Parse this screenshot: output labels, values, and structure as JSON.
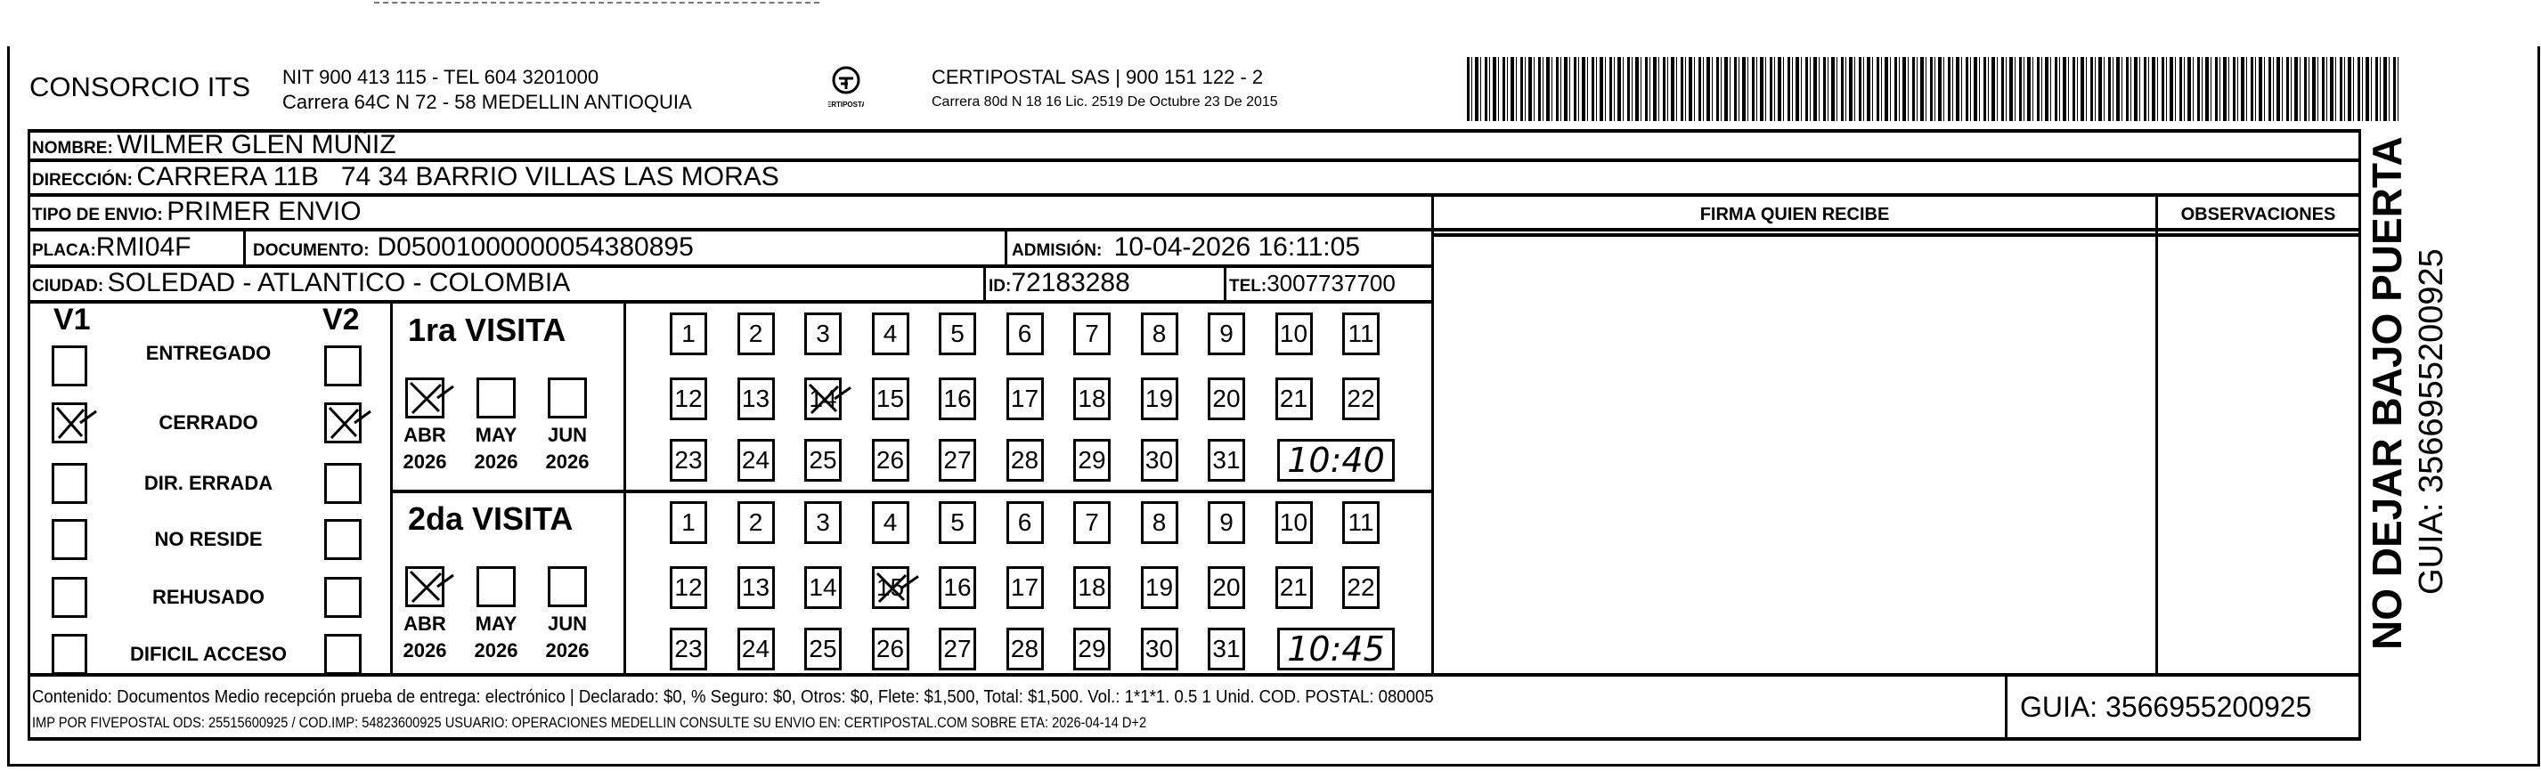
{
  "header": {
    "company": "CONSORCIO ITS",
    "company_line1": "NIT 900 413 115 - TEL 604 3201000",
    "company_line2": "Carrera 64C N 72 - 58 MEDELLIN ANTIOQUIA",
    "logo_text": "CERTIPOSTAL",
    "carrier_line1": "CERTIPOSTAL SAS | 900 151 122 - 2",
    "carrier_line2": "Carrera 80d N 18 16  Lic. 2519 De Octubre 23 De 2015"
  },
  "fields": {
    "nombre_label": "NOMBRE:",
    "nombre": "WILMER GLEN MUÑIZ",
    "direccion_label": "DIRECCIÓN:",
    "direccion": "CARRERA 11B   74 34 BARRIO VILLAS LAS MORAS",
    "tipo_label": "TIPO DE ENVIO:",
    "tipo": "PRIMER ENVIO",
    "placa_label": "PLACA:",
    "placa": "RMI04F",
    "documento_label": "DOCUMENTO:",
    "documento": "D05001000000054380895",
    "admision_label": "ADMISIÓN:",
    "admision": "10-04-2026 16:11:05",
    "ciudad_label": "CIUDAD:",
    "ciudad": "SOLEDAD - ATLANTICO - COLOMBIA",
    "id_label": "ID:",
    "id": "72183288",
    "tel_label": "TEL:",
    "tel": "3007737700"
  },
  "signature": {
    "firma_label": "FIRMA QUIEN RECIBE",
    "observaciones_label": "OBSERVACIONES"
  },
  "states": {
    "v1_label": "V1",
    "v2_label": "V2",
    "items": [
      {
        "label": "ENTREGADO",
        "v1": false,
        "v2": false
      },
      {
        "label": "CERRADO",
        "v1": true,
        "v2": true
      },
      {
        "label": "DIR. ERRADA",
        "v1": false,
        "v2": false
      },
      {
        "label": "NO RESIDE",
        "v1": false,
        "v2": false
      },
      {
        "label": "REHUSADO",
        "v1": false,
        "v2": false
      },
      {
        "label": "DIFICIL ACCESO",
        "v1": false,
        "v2": false
      }
    ]
  },
  "visits": [
    {
      "title": "1ra VISITA",
      "months": [
        {
          "m": "ABR",
          "y": "2026",
          "checked": true
        },
        {
          "m": "MAY",
          "y": "2026",
          "checked": false
        },
        {
          "m": "JUN",
          "y": "2026",
          "checked": false
        }
      ],
      "marked_day": 14,
      "time": "10:40"
    },
    {
      "title": "2da VISITA",
      "months": [
        {
          "m": "ABR",
          "y": "2026",
          "checked": true
        },
        {
          "m": "MAY",
          "y": "2026",
          "checked": false
        },
        {
          "m": "JUN",
          "y": "2026",
          "checked": false
        }
      ],
      "marked_day": 15,
      "time": "10:45"
    }
  ],
  "footer": {
    "line1": "Contenido: Documentos Medio recepción prueba de entrega: electrónico | Declarado: $0, % Seguro: $0, Otros: $0, Flete: $1,500, Total: $1,500. Vol.: 1*1*1. 0.5  1 Unid. COD. POSTAL: 080005",
    "line2": "IMP POR FIVEPOSTAL ODS: 25515600925 / COD.IMP: 54823600925 USUARIO: OPERACIONES MEDELLIN CONSULTE SU ENVIO EN: CERTIPOSTAL.COM SOBRE ETA: 2026-04-14 D+2",
    "guia": "GUIA: 3566955200925"
  },
  "side": {
    "warning": "NO DEJAR BAJO PUERTA",
    "guia": "GUIA: 3566955200925"
  }
}
